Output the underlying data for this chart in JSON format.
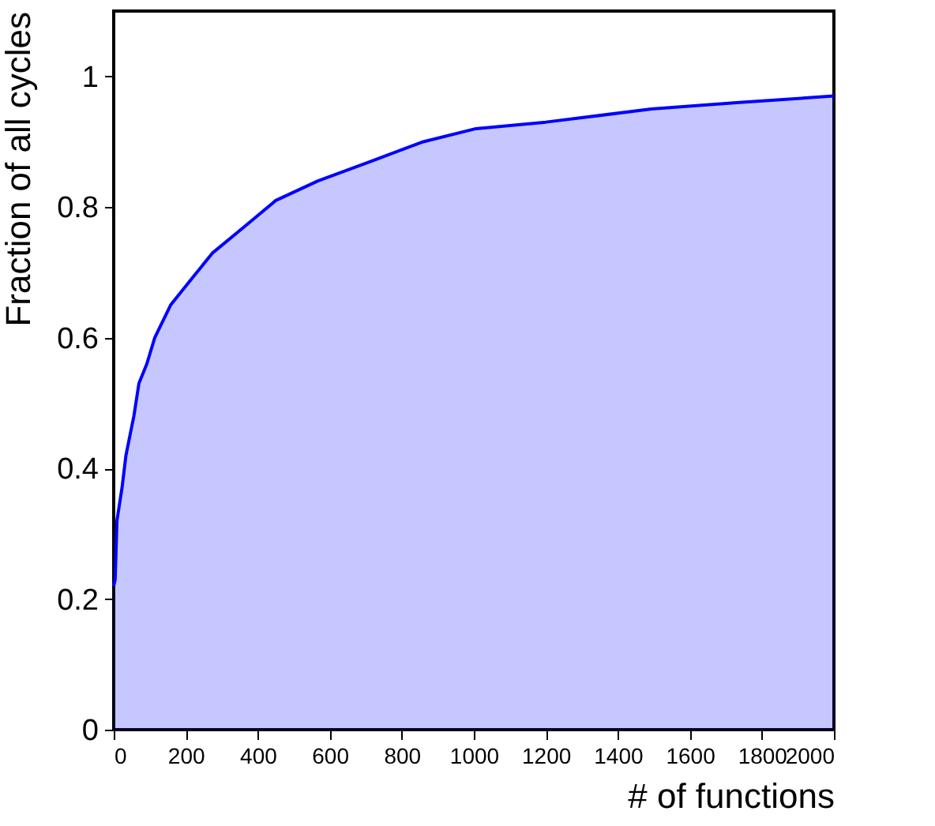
{
  "chart_data": {
    "type": "area",
    "xlabel": "# of functions",
    "ylabel": "Fraction of all cycles",
    "x": [
      0,
      4,
      9,
      23,
      34,
      45,
      56,
      70,
      92,
      114,
      158,
      216,
      275,
      363,
      450,
      567,
      714,
      860,
      1006,
      1200,
      1493,
      1737,
      2000
    ],
    "series": [
      {
        "color": "#0000ff",
        "values": [
          0.22,
          0.23,
          0.32,
          0.37,
          0.42,
          0.45,
          0.48,
          0.53,
          0.56,
          0.6,
          0.65,
          0.69,
          0.73,
          0.77,
          0.81,
          0.84,
          0.87,
          0.9,
          0.92,
          0.93,
          0.95,
          0.96,
          0.97
        ]
      }
    ],
    "xlim": [
      0,
      2000
    ],
    "ylim": [
      0,
      1.1
    ],
    "xticks": [
      0,
      200,
      400,
      600,
      800,
      1000,
      1200,
      1400,
      1600,
      1800,
      2000
    ],
    "yticks": [
      0,
      0.2,
      0.4,
      0.6,
      0.8,
      1
    ],
    "grid": false,
    "legend": false
  }
}
